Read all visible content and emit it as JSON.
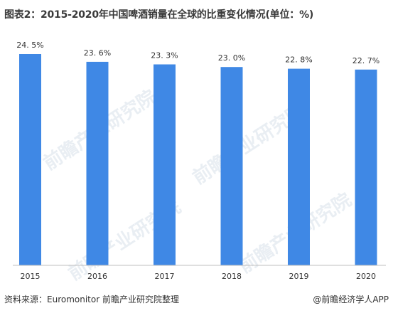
{
  "chart_data": {
    "type": "bar",
    "title": "图表2：2015-2020年中国啤酒销量在全球的比重变化情况(单位：%)",
    "categories": [
      "2015",
      "2016",
      "2017",
      "2018",
      "2019",
      "2020"
    ],
    "values": [
      24.5,
      23.6,
      23.3,
      23.0,
      22.8,
      22.7
    ],
    "value_labels": [
      "24. 5%",
      "23. 6%",
      "23. 3%",
      "23. 0%",
      "22. 8%",
      "22. 7%"
    ],
    "xlabel": "",
    "ylabel": "",
    "y_axis_visible": false,
    "grid": false,
    "legend": "none",
    "bar_color": "#3f88e5"
  },
  "footer": {
    "source": "资料来源：Euromonitor 前瞻产业研究院整理",
    "credit": "@前瞻经济学人APP"
  },
  "watermark": {
    "text": "前瞻产业研究院"
  }
}
